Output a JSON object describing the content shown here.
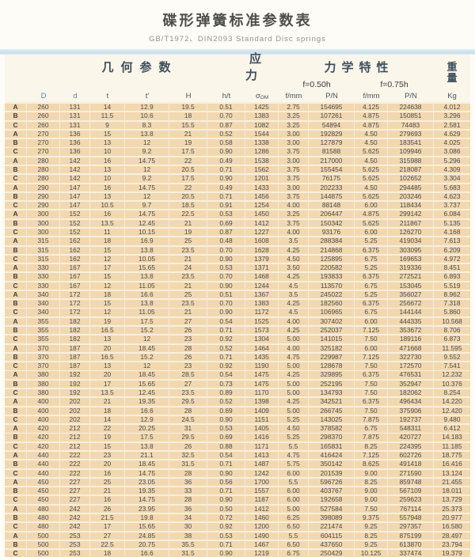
{
  "title": "碟形弹簧标准参数表",
  "subtitle": "GB/T1972、DIN2093  Standard  Disc springs",
  "colors": {
    "row_bg": "#f2d8b0",
    "table_gap": "#f8efdc",
    "divider_band": "#c9dfec",
    "header_text": "#3c4f5e",
    "dd_header_blue": "#4d87ad"
  },
  "table": {
    "group_headers": {
      "geometry": "几何参数",
      "stress": "应力",
      "mechanical": "力学特性",
      "weight_top": "重",
      "weight_bottom": "量"
    },
    "load_headers": {
      "f050": "f=0.50h",
      "f075": "f=0.75h"
    },
    "columns": [
      "",
      "D",
      "d",
      "t",
      "t'",
      "H",
      "h/t",
      {
        "base": "σ",
        "sub": "OM"
      },
      "f/mm",
      "P/N",
      "f/mm",
      "P/N",
      "Kg"
    ],
    "rows": [
      [
        "A",
        "260",
        "131",
        "14",
        "12.9",
        "19.5",
        "0.51",
        "1425",
        "2.75",
        "154695",
        "4.125",
        "224638",
        "4.012"
      ],
      [
        "B",
        "260",
        "131",
        "11.5",
        "10.6",
        "18",
        "0.70",
        "1383",
        "3.25",
        "107261",
        "4.875",
        "150851",
        "3.296"
      ],
      [
        "C",
        "260",
        "131",
        "9",
        "8.3",
        "15.5",
        "0.87",
        "1082",
        "3.25",
        "54894",
        "4.875",
        "74483",
        "2.581"
      ],
      [
        "A",
        "270",
        "136",
        "15",
        "13.8",
        "21",
        "0.52",
        "1544",
        "3.00",
        "192829",
        "4.50",
        "279693",
        "4.629"
      ],
      [
        "B",
        "270",
        "136",
        "13",
        "12",
        "19",
        "0.58",
        "1338",
        "3.00",
        "127879",
        "4.50",
        "183541",
        "4.025"
      ],
      [
        "C",
        "270",
        "136",
        "10",
        "9.2",
        "17.5",
        "0.90",
        "1286",
        "3.75",
        "81588",
        "5.625",
        "109946",
        "3.086"
      ],
      [
        "A",
        "280",
        "142",
        "16",
        "14.75",
        "22",
        "0.49",
        "1538",
        "3.00",
        "217000",
        "4.50",
        "315988",
        "5.296"
      ],
      [
        "B",
        "280",
        "142",
        "13",
        "12",
        "20.5",
        "0.71",
        "1562",
        "3.75",
        "155454",
        "5.625",
        "218087",
        "4.309"
      ],
      [
        "C",
        "280",
        "142",
        "10",
        "9.2",
        "17.5",
        "0.90",
        "1201",
        "3.75",
        "76175",
        "5.625",
        "102652",
        "3.304"
      ],
      [
        "A",
        "290",
        "147",
        "16",
        "14.75",
        "22",
        "0.49",
        "1433",
        "3.00",
        "202233",
        "4.50",
        "294485",
        "5.683"
      ],
      [
        "B",
        "290",
        "147",
        "13",
        "12",
        "20.5",
        "0.71",
        "1456",
        "3.75",
        "144875",
        "5.625",
        "203246",
        "4.623"
      ],
      [
        "C",
        "290",
        "147",
        "10.5",
        "9.7",
        "18.5",
        "0.91",
        "1254",
        "4.00",
        "88148",
        "6.00",
        "118434",
        "3.737"
      ],
      [
        "A",
        "300",
        "152",
        "16",
        "14.75",
        "22.5",
        "0.53",
        "1450",
        "3.25",
        "206447",
        "4.875",
        "299142",
        "6.084"
      ],
      [
        "B",
        "300",
        "152",
        "13.5",
        "12.45",
        "21",
        "0.69",
        "1412",
        "3.75",
        "150342",
        "5.625",
        "211867",
        "5.135"
      ],
      [
        "C",
        "300",
        "152",
        "11",
        "10.15",
        "19",
        "0.87",
        "1227",
        "4.00",
        "93176",
        "6.00",
        "126270",
        "4.168"
      ],
      [
        "A",
        "315",
        "162",
        "18",
        "16.9",
        "25",
        "0.48",
        "1608",
        "3.5",
        "288384",
        "5.25",
        "419034",
        "7.613"
      ],
      [
        "B",
        "315",
        "162",
        "15",
        "13.8",
        "23.5",
        "0.70",
        "1628",
        "4.25",
        "214868",
        "6.375",
        "303095",
        "6.209"
      ],
      [
        "C",
        "315",
        "162",
        "12",
        "10.05",
        "21",
        "0.90",
        "1379",
        "4.50",
        "125895",
        "6.75",
        "169653",
        "4.972"
      ],
      [
        "A",
        "330",
        "167",
        "17",
        "15.65",
        "24",
        "0.53",
        "1371",
        "3.50",
        "220582",
        "5.25",
        "319336",
        "8.451"
      ],
      [
        "B",
        "330",
        "167",
        "15",
        "13.8",
        "23.5",
        "0.70",
        "1468",
        "4.25",
        "193833",
        "6.375",
        "272521",
        "6.893"
      ],
      [
        "C",
        "330",
        "167",
        "12",
        "11.05",
        "21",
        "0.90",
        "1244",
        "4.5",
        "113570",
        "6.75",
        "153045",
        "5.519"
      ],
      [
        "A",
        "340",
        "172",
        "18",
        "16.6",
        "25",
        "0.51",
        "1367",
        "3.5",
        "245022",
        "5.25",
        "356027",
        "8.962"
      ],
      [
        "B",
        "340",
        "172",
        "15",
        "13.8",
        "23.5",
        "0.70",
        "1383",
        "4.25",
        "182560",
        "6.375",
        "256672",
        "7.318"
      ],
      [
        "C",
        "340",
        "172",
        "12",
        "11.05",
        "21",
        "0.90",
        "1172",
        "4.5",
        "106965",
        "6.75",
        "144144",
        "5.860"
      ],
      [
        "A",
        "355",
        "182",
        "19",
        "17.5",
        "27",
        "0.54",
        "1525",
        "4.00",
        "307402",
        "6.00",
        "444335",
        "10.568"
      ],
      [
        "B",
        "355",
        "182",
        "16.5",
        "15.2",
        "26",
        "0.71",
        "1573",
        "4.25",
        "252037",
        "7.125",
        "353672",
        "8.706"
      ],
      [
        "C",
        "355",
        "182",
        "13",
        "12",
        "23",
        "0.92",
        "1304",
        "5.00",
        "141015",
        "7.50",
        "189116",
        "6.873"
      ],
      [
        "A",
        "370",
        "187",
        "20",
        "18.45",
        "28",
        "0.52",
        "1464",
        "4.00",
        "325182",
        "6.00",
        "471668",
        "11.595"
      ],
      [
        "B",
        "370",
        "187",
        "16.5",
        "15.2",
        "26",
        "0.71",
        "1435",
        "4.75",
        "229987",
        "7.125",
        "322730",
        "9.552"
      ],
      [
        "C",
        "370",
        "187",
        "13",
        "12",
        "23",
        "0.92",
        "1190",
        "5.00",
        "128678",
        "7.50",
        "172570",
        "7.541"
      ],
      [
        "A",
        "380",
        "192",
        "20",
        "18.45",
        "28.5",
        "0.54",
        "1475",
        "4.25",
        "329895",
        "6.375",
        "476531",
        "12.232"
      ],
      [
        "B",
        "380",
        "192",
        "17",
        "15.65",
        "27",
        "0.73",
        "1475",
        "5.00",
        "252195",
        "7.50",
        "352947",
        "10.376"
      ],
      [
        "C",
        "380",
        "192",
        "13.5",
        "12.45",
        "23.5",
        "0.89",
        "1170",
        "5.00",
        "134793",
        "7.50",
        "182062",
        "8.254"
      ],
      [
        "A",
        "400",
        "202",
        "21",
        "19.35",
        "29.5",
        "0.52",
        "1398",
        "4.25",
        "342521",
        "6.375",
        "496434",
        "14.220"
      ],
      [
        "B",
        "400",
        "202",
        "18",
        "16.6",
        "28",
        "0.69",
        "1409",
        "5.00",
        "266745",
        "7.50",
        "375906",
        "12.420"
      ],
      [
        "C",
        "400",
        "202",
        "14",
        "12.9",
        "24.5",
        "0.90",
        "1151",
        "5.25",
        "143025",
        "7.875",
        "192737",
        "9.480"
      ],
      [
        "A",
        "420",
        "212",
        "22",
        "20.25",
        "31",
        "0.53",
        "1405",
        "4.50",
        "378582",
        "6.75",
        "548311",
        "6.412"
      ],
      [
        "B",
        "420",
        "212",
        "19",
        "17.5",
        "29.5",
        "0.69",
        "1416",
        "5.25",
        "298370",
        "7.875",
        "420727",
        "14.183"
      ],
      [
        "C",
        "420",
        "212",
        "15",
        "13.8",
        "26",
        "0.88",
        "1171",
        "5.5",
        "165831",
        "8.25",
        "224395",
        "11.185"
      ],
      [
        "A",
        "440",
        "222",
        "23",
        "21.1",
        "32.5",
        "0.54",
        "1413",
        "4.75",
        "416424",
        "7.125",
        "602726",
        "18.775"
      ],
      [
        "B",
        "440",
        "222",
        "20",
        "18.45",
        "31.5",
        "0.71",
        "1487",
        "5.75",
        "350142",
        "8.625",
        "491418",
        "16.416"
      ],
      [
        "C",
        "440",
        "222",
        "16",
        "14.75",
        "28",
        "0.90",
        "1242",
        "6.00",
        "201539",
        "9.00",
        "271590",
        "13.124"
      ],
      [
        "A",
        "450",
        "227",
        "25",
        "23.05",
        "36",
        "0.56",
        "1700",
        "5.5",
        "596726",
        "8.25",
        "859748",
        "21.455"
      ],
      [
        "B",
        "450",
        "227",
        "21",
        "19.35",
        "33",
        "0.71",
        "1557",
        "6.00",
        "403767",
        "9.00",
        "567109",
        "18.011"
      ],
      [
        "C",
        "450",
        "227",
        "16",
        "14.75",
        "28",
        "0.90",
        "1187",
        "6.00",
        "192658",
        "9.00",
        "259623",
        "13.729"
      ],
      [
        "A",
        "480",
        "242",
        "26",
        "23.95",
        "36",
        "0.50",
        "1412",
        "5.00",
        "527584",
        "7.50",
        "767114",
        "25.373"
      ],
      [
        "B",
        "480",
        "242",
        "21.5",
        "19.8",
        "34",
        "0.72",
        "1460",
        "6.25",
        "398089",
        "9.375",
        "557948",
        "20.977"
      ],
      [
        "C",
        "480",
        "242",
        "17",
        "15.65",
        "30",
        "0.92",
        "1200",
        "6.50",
        "221474",
        "9.25",
        "297357",
        "16.580"
      ],
      [
        "A",
        "500",
        "253",
        "27",
        "24.85",
        "38",
        "0.53",
        "1490",
        "5.5",
        "604115",
        "8.25",
        "875199",
        "28.497"
      ],
      [
        "B",
        "500",
        "253",
        "22.5",
        "20.75",
        "35.5",
        "0.71",
        "1467",
        "6.50",
        "437650",
        "9.25",
        "613870",
        "23.794"
      ],
      [
        "C",
        "500",
        "253",
        "18",
        "16.6",
        "31.5",
        "0.90",
        "1219",
        "6.75",
        "250429",
        "10.125",
        "337474",
        "19.379"
      ]
    ]
  }
}
